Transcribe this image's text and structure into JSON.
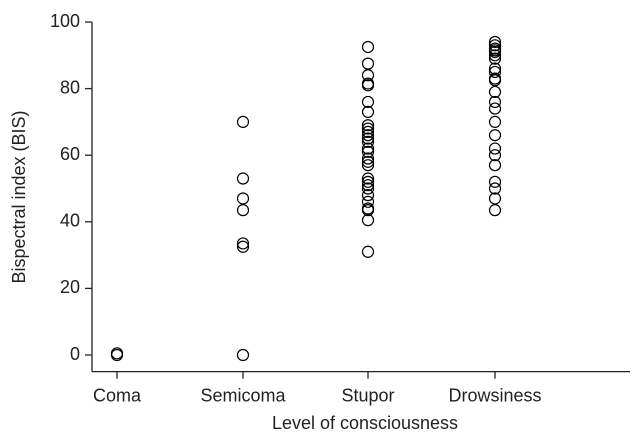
{
  "chart_data": {
    "type": "strip",
    "x_label": "Level of consciousness",
    "y_label": "Bispectral index (BIS)",
    "categories": [
      "Coma",
      "Semicoma",
      "Stupor",
      "Drowsiness"
    ],
    "values": [
      [
        0.5,
        0
      ],
      [
        70,
        53,
        47,
        43.5,
        33.5,
        32.5,
        0
      ],
      [
        92.5,
        87.5,
        84,
        81.5,
        81,
        76,
        73,
        69,
        68,
        67,
        66,
        65,
        64,
        62,
        61,
        59,
        58,
        57,
        53,
        52,
        51,
        50,
        48,
        46,
        44,
        43.5,
        40.5,
        31
      ],
      [
        94,
        93,
        92,
        91.5,
        91,
        90,
        89,
        86,
        85,
        83,
        82.5,
        79,
        76,
        74,
        70,
        66,
        62,
        60,
        57,
        52,
        50,
        47,
        43.5
      ]
    ],
    "color": "#000000",
    "ylim": [
      -5,
      100
    ],
    "yticks": [
      0,
      20,
      40,
      60,
      80,
      100
    ]
  }
}
